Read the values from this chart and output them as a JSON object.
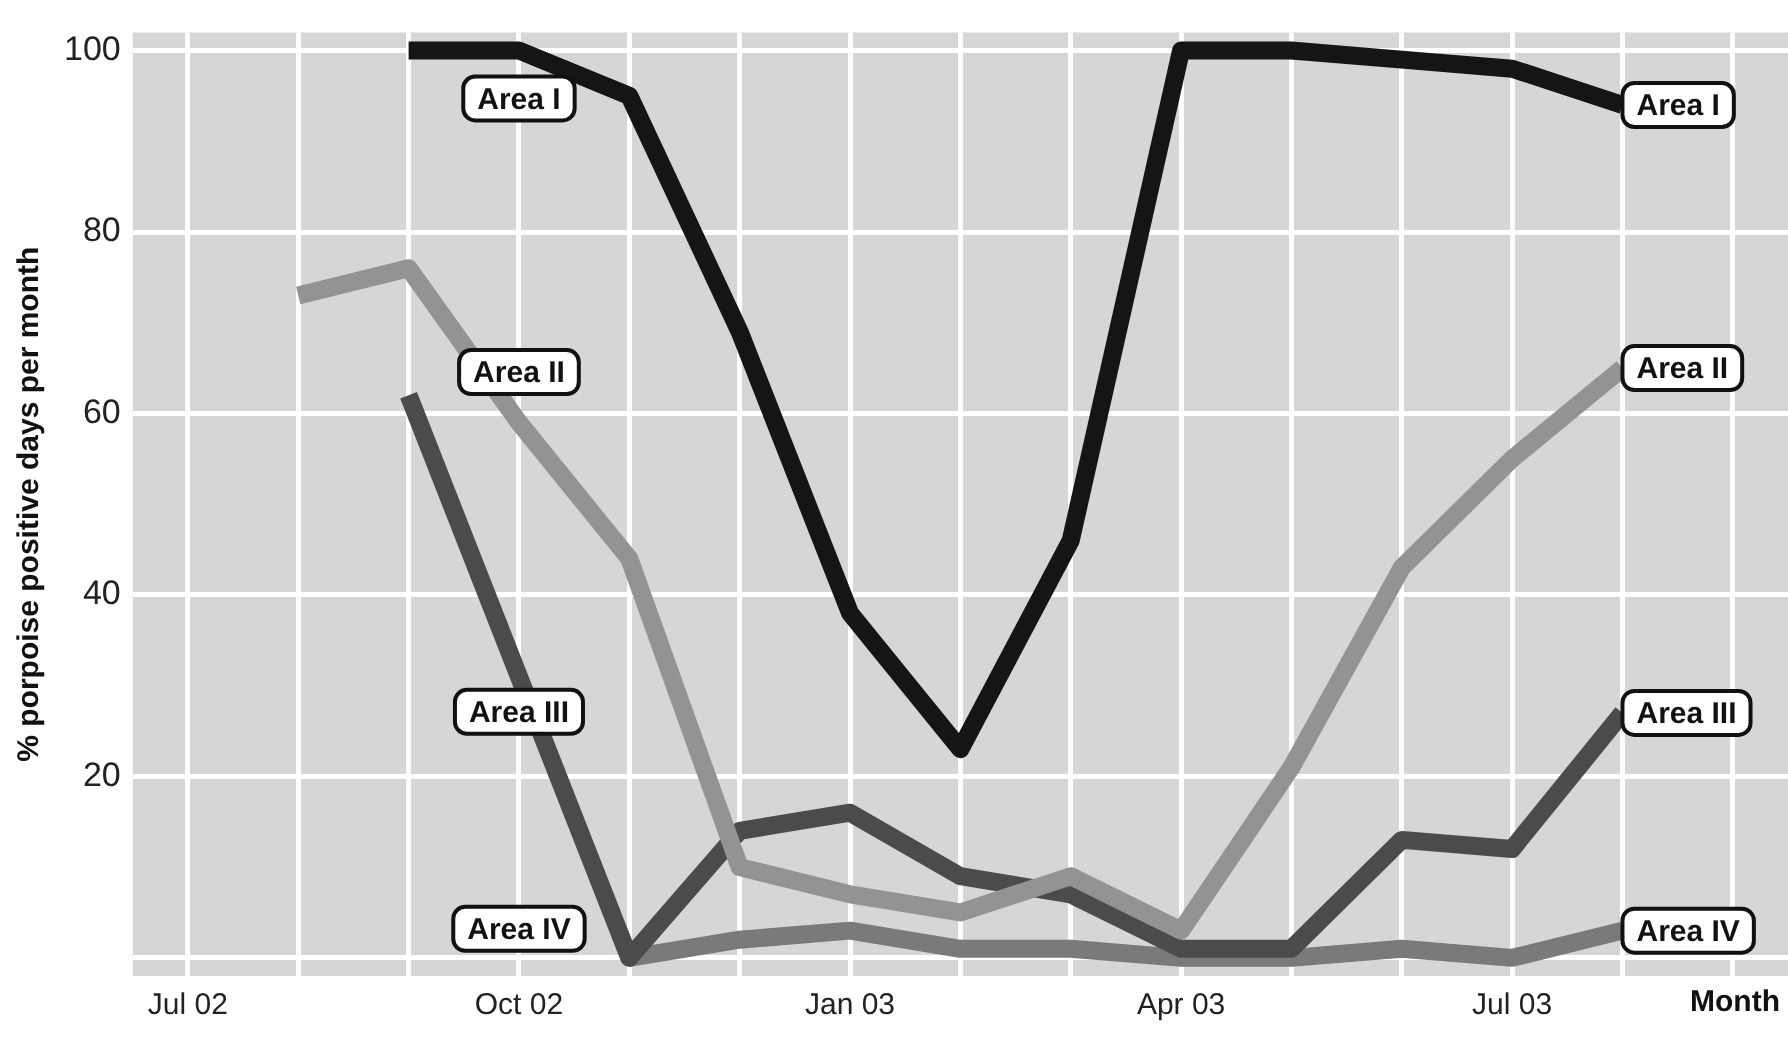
{
  "chart_data": {
    "type": "line",
    "xlabel": "Month",
    "ylabel": "% porpoise positive days per month",
    "categories": [
      "Jul 02",
      null,
      null,
      "Oct 02",
      null,
      null,
      "Jan 03",
      null,
      null,
      "Apr 03",
      null,
      null,
      "Jul 03",
      null,
      null
    ],
    "series": [
      {
        "name": "Area I",
        "color": "#151515",
        "values": [
          null,
          null,
          100,
          100,
          95,
          69,
          38,
          23,
          46,
          100,
          100,
          99,
          98,
          94,
          null
        ]
      },
      {
        "name": "Area II",
        "color": "#939393",
        "values": [
          null,
          73,
          76,
          59,
          44,
          10,
          7,
          5,
          9,
          3,
          21,
          43,
          55,
          65,
          null
        ]
      },
      {
        "name": "Area III",
        "color": "#4a4b4b",
        "values": [
          null,
          null,
          62,
          31,
          0,
          14,
          16,
          9,
          7,
          1,
          1,
          13,
          12,
          27,
          null
        ]
      },
      {
        "name": "Area IV",
        "color": "#7a7a7a",
        "values": [
          null,
          null,
          null,
          null,
          0,
          2,
          3,
          1,
          1,
          0,
          0,
          1,
          0,
          3,
          null
        ]
      }
    ],
    "ylim": [
      -2,
      102
    ],
    "yticks": [
      {
        "value": 0,
        "label": null
      },
      20,
      40,
      60,
      80,
      100
    ],
    "grid": true,
    "legend": false,
    "marker": "none",
    "line_style": "solid"
  }
}
